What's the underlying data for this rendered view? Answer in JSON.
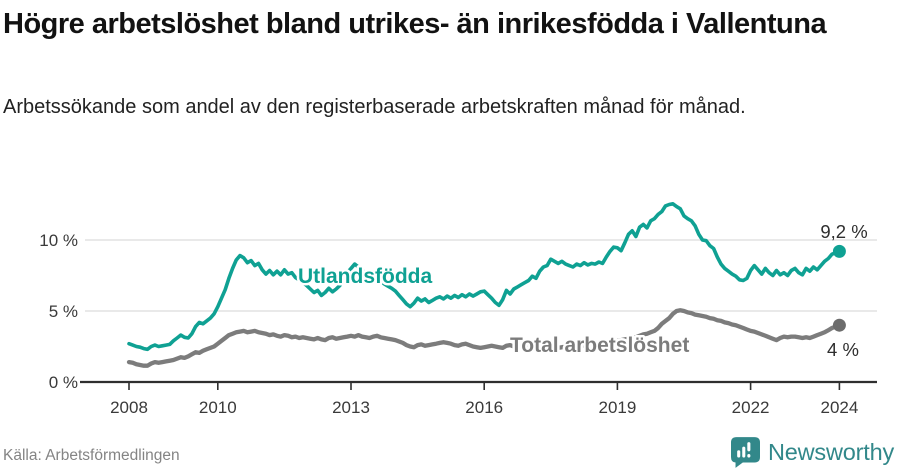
{
  "page": {
    "title": "Högre arbetslöshet bland utrikes- än inrikesfödda i Vallentuna",
    "subtitle": "Arbetssökande som andel av den registerbaserade arbetskraften månad för månad.",
    "source": "Källa: Arbetsförmedlingen",
    "brand": "Newsworthy"
  },
  "colors": {
    "accent_teal": "#0fa193",
    "line_gray": "#7c7c7c",
    "gray_dot": "#6c6c6c",
    "brand_teal": "#32888a",
    "axis": "#2f2f2f",
    "grid": "#dcdcdc",
    "tick_text": "#3a3a3a",
    "value_text": "#2e2e2e"
  },
  "chart_data": {
    "type": "line",
    "title": "Högre arbetslöshet bland utrikes- än inrikesfödda i Vallentuna",
    "subtitle": "Arbetssökande som andel av den registerbaserade arbetskraften månad för månad.",
    "xlabel": "",
    "ylabel": "",
    "x": {
      "start_year": 2008,
      "step_years": 0.0833333,
      "tick_years": [
        2008,
        2010,
        2013,
        2016,
        2019,
        2022,
        2024
      ]
    },
    "y": {
      "ticks": [
        0,
        5,
        10
      ],
      "tick_suffix": " %",
      "range": [
        0,
        13.5
      ],
      "grid": true
    },
    "legend": "inline-labels",
    "series": [
      {
        "name": "Utlandsfödda",
        "color": "#0fa193",
        "dot_color": "#0fa193",
        "end_label": "9,2 %",
        "end_value": 9.2,
        "values": [
          2.7,
          2.6,
          2.5,
          2.45,
          2.35,
          2.3,
          2.5,
          2.6,
          2.5,
          2.55,
          2.6,
          2.65,
          2.9,
          3.1,
          3.3,
          3.15,
          3.1,
          3.4,
          3.9,
          4.2,
          4.1,
          4.3,
          4.5,
          4.8,
          5.3,
          5.9,
          6.5,
          7.3,
          8.0,
          8.6,
          8.9,
          8.75,
          8.4,
          8.55,
          8.2,
          8.35,
          7.9,
          7.6,
          7.85,
          7.55,
          7.8,
          7.55,
          7.9,
          7.6,
          7.7,
          7.35,
          7.2,
          7.0,
          6.8,
          6.55,
          6.3,
          6.45,
          6.1,
          6.3,
          6.6,
          6.35,
          6.55,
          6.8,
          7.2,
          7.7,
          8.0,
          8.3,
          8.1,
          7.85,
          7.7,
          7.5,
          7.65,
          7.35,
          7.1,
          6.9,
          6.75,
          6.6,
          6.4,
          6.1,
          5.8,
          5.5,
          5.3,
          5.55,
          5.9,
          5.7,
          5.85,
          5.6,
          5.75,
          5.9,
          6.0,
          5.85,
          6.05,
          5.9,
          6.1,
          5.95,
          6.15,
          6.0,
          6.2,
          6.05,
          6.2,
          6.35,
          6.4,
          6.15,
          5.9,
          5.6,
          5.4,
          5.8,
          6.45,
          6.2,
          6.55,
          6.7,
          6.85,
          7.0,
          7.15,
          7.45,
          7.3,
          7.8,
          8.1,
          8.2,
          8.65,
          8.5,
          8.35,
          8.5,
          8.3,
          8.2,
          8.1,
          8.3,
          8.2,
          8.4,
          8.25,
          8.35,
          8.3,
          8.45,
          8.35,
          8.8,
          9.2,
          9.5,
          9.45,
          9.25,
          9.8,
          10.4,
          10.65,
          10.25,
          10.9,
          11.1,
          10.85,
          11.35,
          11.5,
          11.8,
          12.0,
          12.4,
          12.5,
          12.55,
          12.35,
          12.2,
          11.7,
          11.5,
          11.35,
          11.0,
          10.4,
          10.0,
          9.95,
          9.6,
          9.4,
          8.8,
          8.3,
          8.0,
          7.8,
          7.6,
          7.45,
          7.2,
          7.15,
          7.3,
          7.85,
          8.2,
          7.9,
          7.6,
          8.0,
          7.7,
          7.5,
          7.85,
          7.55,
          7.7,
          7.5,
          7.85,
          8.0,
          7.7,
          7.55,
          8.0,
          7.8,
          8.1,
          7.9,
          8.2,
          8.5,
          8.7,
          9.0,
          9.1,
          9.2
        ]
      },
      {
        "name": "Total arbetslöshet",
        "color": "#7c7c7c",
        "dot_color": "#6c6c6c",
        "end_label": "4 %",
        "end_value": 4.0,
        "values": [
          1.4,
          1.35,
          1.25,
          1.2,
          1.15,
          1.15,
          1.3,
          1.4,
          1.35,
          1.4,
          1.45,
          1.5,
          1.55,
          1.65,
          1.75,
          1.7,
          1.8,
          1.95,
          2.1,
          2.05,
          2.2,
          2.3,
          2.4,
          2.5,
          2.7,
          2.9,
          3.1,
          3.3,
          3.4,
          3.5,
          3.55,
          3.6,
          3.5,
          3.55,
          3.6,
          3.5,
          3.45,
          3.4,
          3.3,
          3.35,
          3.25,
          3.2,
          3.3,
          3.25,
          3.15,
          3.2,
          3.1,
          3.15,
          3.1,
          3.05,
          3.0,
          3.1,
          3.0,
          2.95,
          3.1,
          3.15,
          3.05,
          3.1,
          3.15,
          3.2,
          3.25,
          3.2,
          3.3,
          3.2,
          3.15,
          3.1,
          3.2,
          3.25,
          3.15,
          3.1,
          3.05,
          3.0,
          2.95,
          2.85,
          2.75,
          2.6,
          2.5,
          2.45,
          2.6,
          2.65,
          2.55,
          2.6,
          2.65,
          2.7,
          2.75,
          2.8,
          2.75,
          2.7,
          2.6,
          2.55,
          2.65,
          2.7,
          2.6,
          2.5,
          2.45,
          2.4,
          2.45,
          2.5,
          2.55,
          2.5,
          2.45,
          2.4,
          2.55,
          2.6,
          2.5,
          2.45,
          2.5,
          2.55,
          2.5,
          2.45,
          2.4,
          2.35,
          2.3,
          2.25,
          2.4,
          2.45,
          2.4,
          2.45,
          2.5,
          2.55,
          2.6,
          2.65,
          2.6,
          2.55,
          2.6,
          2.65,
          2.7,
          2.75,
          2.7,
          2.75,
          2.8,
          2.85,
          2.9,
          2.95,
          3.0,
          3.05,
          3.1,
          3.15,
          3.25,
          3.35,
          3.4,
          3.5,
          3.6,
          3.8,
          4.1,
          4.3,
          4.5,
          4.8,
          5.0,
          5.05,
          5.0,
          4.9,
          4.85,
          4.75,
          4.7,
          4.65,
          4.6,
          4.5,
          4.45,
          4.35,
          4.3,
          4.2,
          4.15,
          4.05,
          4.0,
          3.9,
          3.8,
          3.7,
          3.6,
          3.55,
          3.45,
          3.35,
          3.25,
          3.15,
          3.05,
          2.95,
          3.1,
          3.2,
          3.15,
          3.2,
          3.2,
          3.15,
          3.1,
          3.15,
          3.1,
          3.2,
          3.3,
          3.4,
          3.5,
          3.65,
          3.8,
          3.9,
          4.0
        ]
      }
    ]
  }
}
